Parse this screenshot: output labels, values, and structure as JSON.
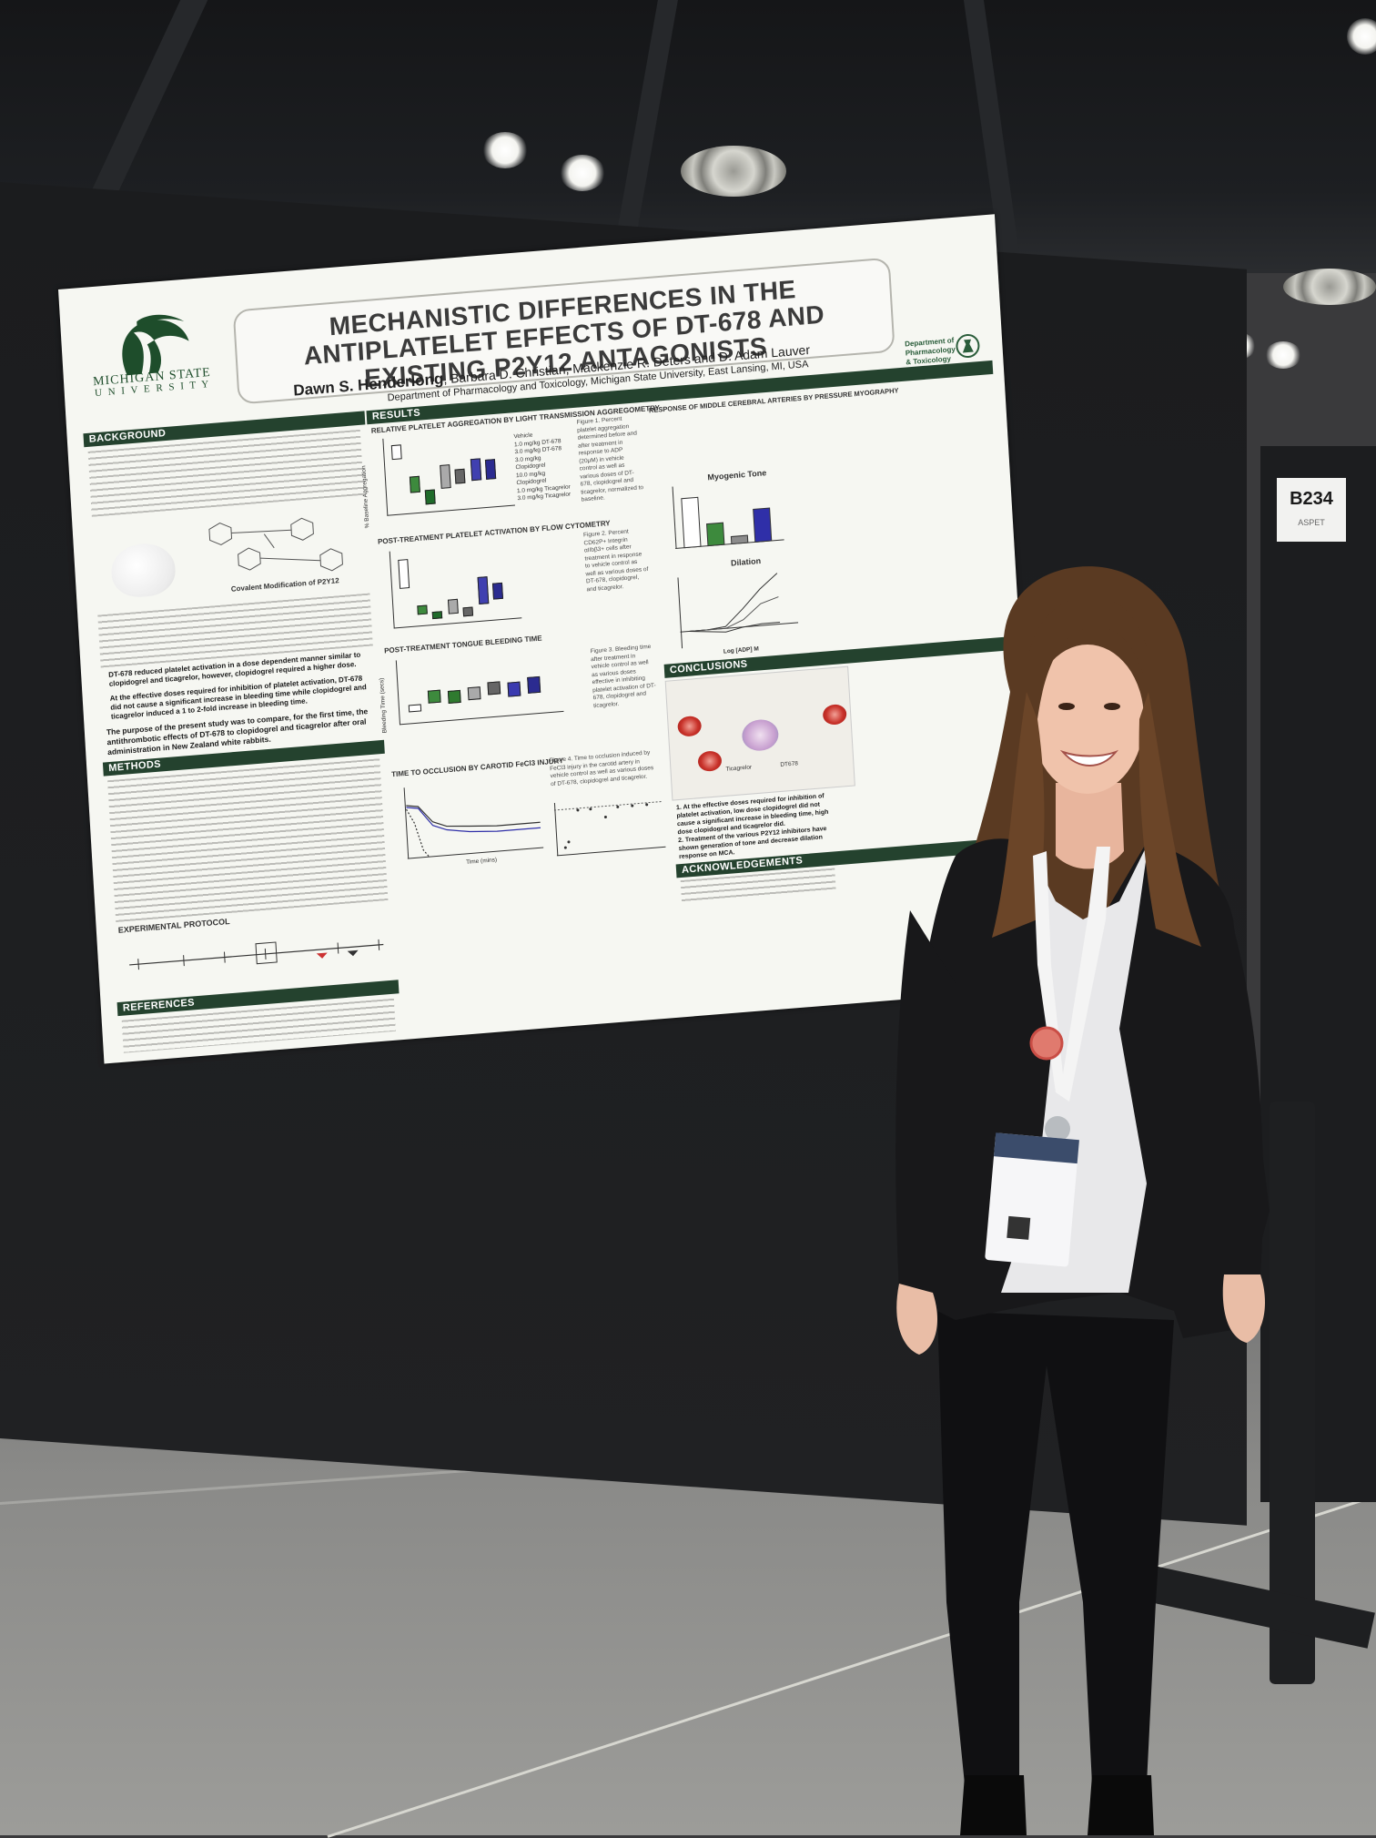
{
  "poster": {
    "institution_line1": "MICHIGAN STATE",
    "institution_line2": "U N I V E R S I T Y",
    "title": "MECHANISTIC DIFFERENCES IN THE ANTIPLATELET EFFECTS OF DT-678 AND EXISTING P2Y12 ANTAGONISTS",
    "presenting_author": "Dawn S. Henderlong",
    "coauthors": ", Barbara D. Christian, Mackenzie R. Deters and D. Adam Lauver",
    "affiliation": "Department of Pharmacology and Toxicology, Michigan State University, East Lansing, MI, USA",
    "dept_logo_text": "Department of Pharmacology & Toxicology",
    "sections": {
      "background": "BACKGROUND",
      "methods": "METHODS",
      "experimental_protocol": "EXPERIMENTAL PROTOCOL",
      "references": "REFERENCES",
      "results": "RESULTS",
      "conclusions": "CONCLUSIONS",
      "acknowledgements": "ACKNOWLEDGEMENTS"
    },
    "background": {
      "figure_caption": "Covalent Modification of P2Y12",
      "bullet1": "DT-678 reduced platelet activation in a dose dependent manner similar to clopidogrel and ticagrelor, however, clopidogrel required a higher dose.",
      "bullet2": "At the effective doses required for inhibition of platelet activation, DT-678 did not cause a significant increase in bleeding time while clopidogrel and ticagrelor induced a 1 to 2-fold increase in bleeding time.",
      "purpose": "The purpose of the present study was to compare, for the first time, the antithrombotic effects of DT-678 to clopidogrel and ticagrelor after oral administration in New Zealand white rabbits."
    },
    "results": {
      "panel1_title": "RELATIVE PLATELET AGGREGATION BY LIGHT TRANSMISSION AGGREGOMETRY",
      "panel1_ylabel": "% Baseline Aggregation",
      "panel2_title": "POST-TREATMENT PLATELET ACTIVATION BY FLOW CYTOMETRY",
      "panel3_title": "POST-TREATMENT TONGUE BLEEDING TIME",
      "panel3_ylabel": "Bleeding Time (secs)",
      "panel4_title": "TIME TO OCCLUSION BY CAROTID FeCl3 INJURY",
      "panel4_xlabel": "Time (mins)",
      "panel5_title": "RESPONSE OF MIDDLE CEREBRAL ARTERIES BY PRESSURE MYOGRAPHY",
      "myogenic_label": "Myogenic Tone",
      "dilation_label": "Dilation",
      "dilation_xlabel": "Log [ADP] M",
      "fig1_caption": "Figure 1. Percent platelet aggregation determined before and after treatment in response to ADP (20μM) in vehicle control as well as various doses of DT-678, clopidogrel and ticagrelor, normalized to baseline.",
      "fig2_caption": "Figure 2. Percent CD62P+ Integrin αIIbβ3+ cells after treatment in response to vehicle control as well as various doses of DT-678, clopidogrel, and ticagrelor.",
      "fig3_caption": "Figure 3. Bleeding time after treatment in vehicle control as well as various doses effective in inhibiting platelet activation of DT-678, clopidogrel and ticagrelor.",
      "fig4_caption": "Figure 4. Time to occlusion induced by FeCl3 injury in the carotid artery in vehicle control as well as various doses of DT-678, clopidogrel and ticagrelor.",
      "legend": [
        "Vehicle",
        "1.0 mg/kg DT-678",
        "3.0 mg/kg DT-678",
        "3.0 mg/kg Clopidogrel",
        "10.0 mg/kg Clopidogrel",
        "1.0 mg/kg Ticagrelor",
        "3.0 mg/kg Ticagrelor"
      ]
    },
    "conclusions": {
      "c1": "1. At the effective doses required for inhibition of platelet activation, low dose clopidogrel did not cause a significant increase in bleeding time, high dose clopidogrel and ticagrelor did.",
      "c2": "2. Treatment of the various P2Y12 inhibitors have shown generation of tone and decrease dilation response on MCA.",
      "illus_label1": "Ticagrelor",
      "illus_label2": "DT678"
    },
    "colors": {
      "header_green": "#24422e",
      "bar_green": "#3d8a3d",
      "bar_gray": "#8c8c8c",
      "bar_blue": "#2f2fa8",
      "msu_green": "#1e4d2b"
    }
  },
  "booth": {
    "number": "B234",
    "sub": "ASPET"
  }
}
